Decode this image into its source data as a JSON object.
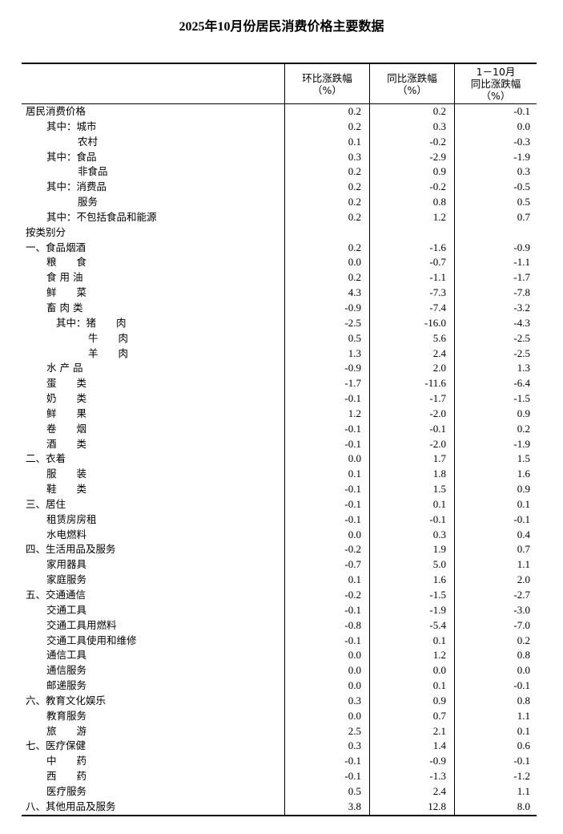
{
  "title": "2025年10月份居民消费价格主要数据",
  "headers": {
    "mom": [
      "环比涨跌幅",
      "（%）"
    ],
    "yoy": [
      "同比涨跌幅",
      "（%）"
    ],
    "ytd": [
      "1－10月",
      "同比涨跌幅",
      "（%）"
    ]
  },
  "rows": [
    {
      "label": "居民消费价格",
      "indent": 0,
      "mom": "0.2",
      "yoy": "0.2",
      "ytd": "-0.1"
    },
    {
      "label": "其中：城市",
      "indent": 1,
      "mom": "0.2",
      "yoy": "0.3",
      "ytd": "0.0"
    },
    {
      "label": "农村",
      "indent": 2,
      "mom": "0.1",
      "yoy": "-0.2",
      "ytd": "-0.3"
    },
    {
      "label": "其中：食品",
      "indent": 1,
      "mom": "0.3",
      "yoy": "-2.9",
      "ytd": "-1.9"
    },
    {
      "label": "非食品",
      "indent": 2,
      "mom": "0.2",
      "yoy": "0.9",
      "ytd": "0.3"
    },
    {
      "label": "其中：消费品",
      "indent": 1,
      "mom": "0.2",
      "yoy": "-0.2",
      "ytd": "-0.5"
    },
    {
      "label": "服务",
      "indent": 2,
      "mom": "0.2",
      "yoy": "0.8",
      "ytd": "0.5"
    },
    {
      "label": "其中：不包括食品和能源",
      "indent": 1,
      "mom": "0.2",
      "yoy": "1.2",
      "ytd": "0.7"
    },
    {
      "label": "按类别分",
      "indent": 0,
      "mom": "",
      "yoy": "",
      "ytd": ""
    },
    {
      "label": "一、食品烟酒",
      "indent": 0,
      "mom": "0.2",
      "yoy": "-1.6",
      "ytd": "-0.9"
    },
    {
      "label": "粮　　食",
      "indent": 1,
      "mom": "0.0",
      "yoy": "-0.7",
      "ytd": "-1.1"
    },
    {
      "label": "食 用 油",
      "indent": 1,
      "mom": "0.2",
      "yoy": "-1.1",
      "ytd": "-1.7"
    },
    {
      "label": "鲜　　菜",
      "indent": 1,
      "mom": "4.3",
      "yoy": "-7.3",
      "ytd": "-7.8"
    },
    {
      "label": "畜 肉 类",
      "indent": 1,
      "mom": "-0.9",
      "yoy": "-7.4",
      "ytd": "-3.2"
    },
    {
      "label": "其中：猪　　肉",
      "indent": 3,
      "mom": "-2.5",
      "yoy": "-16.0",
      "ytd": "-4.3"
    },
    {
      "label": "牛　　肉",
      "indent": 4,
      "mom": "0.5",
      "yoy": "5.6",
      "ytd": "-2.5"
    },
    {
      "label": "羊　　肉",
      "indent": 4,
      "mom": "1.3",
      "yoy": "2.4",
      "ytd": "-2.5"
    },
    {
      "label": "水 产 品",
      "indent": 1,
      "mom": "-0.9",
      "yoy": "2.0",
      "ytd": "1.3"
    },
    {
      "label": "蛋　　类",
      "indent": 1,
      "mom": "-1.7",
      "yoy": "-11.6",
      "ytd": "-6.4"
    },
    {
      "label": "奶　　类",
      "indent": 1,
      "mom": "-0.1",
      "yoy": "-1.7",
      "ytd": "-1.5"
    },
    {
      "label": "鲜　　果",
      "indent": 1,
      "mom": "1.2",
      "yoy": "-2.0",
      "ytd": "0.9"
    },
    {
      "label": "卷　　烟",
      "indent": 1,
      "mom": "-0.1",
      "yoy": "-0.1",
      "ytd": "0.2"
    },
    {
      "label": "酒　　类",
      "indent": 1,
      "mom": "-0.1",
      "yoy": "-2.0",
      "ytd": "-1.9"
    },
    {
      "label": "二、衣着",
      "indent": 0,
      "mom": "0.0",
      "yoy": "1.7",
      "ytd": "1.5"
    },
    {
      "label": "服　　装",
      "indent": 1,
      "mom": "0.1",
      "yoy": "1.8",
      "ytd": "1.6"
    },
    {
      "label": "鞋　　类",
      "indent": 1,
      "mom": "-0.1",
      "yoy": "1.5",
      "ytd": "0.9"
    },
    {
      "label": "三、居住",
      "indent": 0,
      "mom": "-0.1",
      "yoy": "0.1",
      "ytd": "0.1"
    },
    {
      "label": "租赁房房租",
      "indent": 1,
      "mom": "-0.1",
      "yoy": "-0.1",
      "ytd": "-0.1"
    },
    {
      "label": "水电燃料",
      "indent": 1,
      "mom": "0.0",
      "yoy": "0.3",
      "ytd": "0.4"
    },
    {
      "label": "四、生活用品及服务",
      "indent": 0,
      "mom": "-0.2",
      "yoy": "1.9",
      "ytd": "0.7"
    },
    {
      "label": "家用器具",
      "indent": 1,
      "mom": "-0.7",
      "yoy": "5.0",
      "ytd": "1.1"
    },
    {
      "label": "家庭服务",
      "indent": 1,
      "mom": "0.1",
      "yoy": "1.6",
      "ytd": "2.0"
    },
    {
      "label": "五、交通通信",
      "indent": 0,
      "mom": "-0.2",
      "yoy": "-1.5",
      "ytd": "-2.7"
    },
    {
      "label": "交通工具",
      "indent": 1,
      "mom": "-0.1",
      "yoy": "-1.9",
      "ytd": "-3.0"
    },
    {
      "label": "交通工具用燃料",
      "indent": 1,
      "mom": "-0.8",
      "yoy": "-5.4",
      "ytd": "-7.0"
    },
    {
      "label": "交通工具使用和维修",
      "indent": 1,
      "mom": "-0.1",
      "yoy": "0.1",
      "ytd": "0.2"
    },
    {
      "label": "通信工具",
      "indent": 1,
      "mom": "0.0",
      "yoy": "1.2",
      "ytd": "0.8"
    },
    {
      "label": "通信服务",
      "indent": 1,
      "mom": "0.0",
      "yoy": "0.0",
      "ytd": "0.0"
    },
    {
      "label": "邮递服务",
      "indent": 1,
      "mom": "0.0",
      "yoy": "0.1",
      "ytd": "-0.1"
    },
    {
      "label": "六、教育文化娱乐",
      "indent": 0,
      "mom": "0.3",
      "yoy": "0.9",
      "ytd": "0.8"
    },
    {
      "label": "教育服务",
      "indent": 1,
      "mom": "0.0",
      "yoy": "0.7",
      "ytd": "1.1"
    },
    {
      "label": "旅　　游",
      "indent": 1,
      "mom": "2.5",
      "yoy": "2.1",
      "ytd": "0.1"
    },
    {
      "label": "七、医疗保健",
      "indent": 0,
      "mom": "0.3",
      "yoy": "1.4",
      "ytd": "0.6"
    },
    {
      "label": "中　　药",
      "indent": 1,
      "mom": "-0.1",
      "yoy": "-0.9",
      "ytd": "-0.1"
    },
    {
      "label": "西　　药",
      "indent": 1,
      "mom": "-0.1",
      "yoy": "-1.3",
      "ytd": "-1.2"
    },
    {
      "label": "医疗服务",
      "indent": 1,
      "mom": "0.5",
      "yoy": "2.4",
      "ytd": "1.1"
    },
    {
      "label": "八、其他用品及服务",
      "indent": 0,
      "mom": "3.8",
      "yoy": "12.8",
      "ytd": "8.0"
    }
  ]
}
